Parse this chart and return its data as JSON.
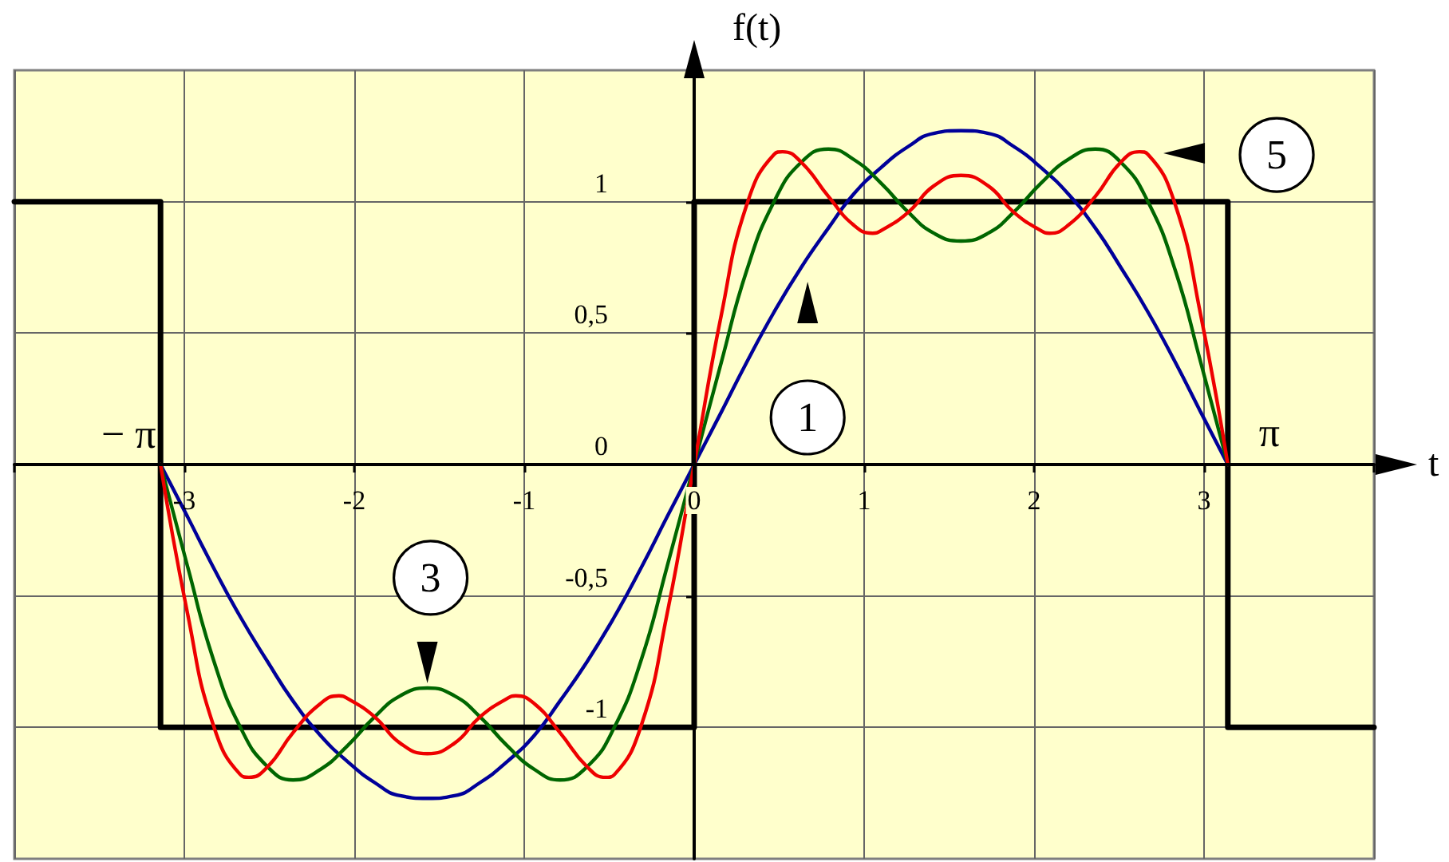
{
  "chart_data": {
    "type": "line",
    "xlabel": "t",
    "ylabel": "f(t)",
    "xlim": [
      -4,
      4
    ],
    "ylim": [
      -1.5,
      1.5
    ],
    "xticks": [
      {
        "value": -4,
        "label": null
      },
      -3,
      -2,
      -1,
      0,
      1,
      2,
      3,
      {
        "value": 4,
        "label": null
      }
    ],
    "yticks": [
      -1,
      {
        "value": -0.5,
        "label": "-0,5"
      },
      0,
      {
        "value": 0.5,
        "label": "0,5"
      },
      1
    ],
    "grid": true,
    "marker": "none",
    "x": [
      -3.14,
      -2.98,
      -2.83,
      -2.67,
      -2.51,
      -2.36,
      -2.2,
      -2.04,
      -1.88,
      -1.73,
      -1.57,
      -1.41,
      -1.26,
      -1.1,
      -0.94,
      -0.79,
      -0.63,
      -0.47,
      -0.31,
      -0.16,
      0,
      0.16,
      0.31,
      0.47,
      0.63,
      0.79,
      0.94,
      1.1,
      1.26,
      1.41,
      1.57,
      1.73,
      1.88,
      2.04,
      2.2,
      2.36,
      2.51,
      2.67,
      2.83,
      2.98,
      3.14
    ],
    "series": [
      {
        "type": "step",
        "color": "#000000",
        "x": [
          -4,
          -3.14,
          0,
          3.14,
          4
        ],
        "values": [
          1,
          -1,
          1,
          -1,
          -1
        ]
      },
      {
        "name": "1",
        "color": "#000099",
        "values": [
          0,
          -0.2,
          -0.39,
          -0.58,
          -0.75,
          -0.9,
          -1.03,
          -1.13,
          -1.21,
          -1.26,
          -1.27,
          -1.26,
          -1.21,
          -1.13,
          -1.03,
          -0.9,
          -0.75,
          -0.58,
          -0.39,
          -0.2,
          0,
          0.2,
          0.39,
          0.58,
          0.75,
          0.9,
          1.03,
          1.13,
          1.21,
          1.26,
          1.27,
          1.26,
          1.21,
          1.13,
          1.03,
          0.9,
          0.75,
          0.58,
          0.39,
          0.2,
          0
        ]
      },
      {
        "name": "3",
        "color": "#006600",
        "values": [
          0,
          -0.39,
          -0.74,
          -1,
          -1.15,
          -1.2,
          -1.16,
          -1.07,
          -0.96,
          -0.88,
          -0.85,
          -0.88,
          -0.96,
          -1.07,
          -1.16,
          -1.2,
          -1.15,
          -1,
          -0.74,
          -0.39,
          0,
          0.39,
          0.74,
          1,
          1.15,
          1.2,
          1.16,
          1.07,
          0.96,
          0.88,
          0.85,
          0.88,
          0.96,
          1.07,
          1.16,
          1.2,
          1.15,
          1,
          0.74,
          0.39,
          0
        ]
      },
      {
        "name": "5",
        "color": "#ee0000",
        "x": [
          -3.14,
          -2.98,
          -2.83,
          -2.67,
          -2.62,
          -2.51,
          -2.36,
          -2.2,
          -2.09,
          -2.04,
          -1.88,
          -1.73,
          -1.57,
          -1.41,
          -1.26,
          -1.1,
          -1.05,
          -0.94,
          -0.79,
          -0.63,
          -0.52,
          -0.47,
          -0.31,
          -0.16,
          0,
          0.16,
          0.31,
          0.47,
          0.52,
          0.63,
          0.79,
          0.94,
          1.05,
          1.1,
          1.26,
          1.41,
          1.57,
          1.73,
          1.88,
          2.04,
          2.09,
          2.2,
          2.36,
          2.51,
          2.62,
          2.67,
          2.83,
          2.98,
          3.14
        ],
        "values": [
          0,
          -0.57,
          -0.99,
          -1.18,
          -1.19,
          -1.15,
          -1.02,
          -0.91,
          -0.88,
          -0.89,
          -0.96,
          -1.06,
          -1.1,
          -1.06,
          -0.96,
          -0.89,
          -0.88,
          -0.91,
          -1.02,
          -1.15,
          -1.19,
          -1.18,
          -0.99,
          -0.57,
          0,
          0.57,
          0.99,
          1.18,
          1.19,
          1.15,
          1.02,
          0.91,
          0.88,
          0.89,
          0.96,
          1.06,
          1.1,
          1.06,
          0.96,
          0.89,
          0.88,
          0.91,
          1.02,
          1.15,
          1.19,
          1.18,
          0.99,
          0.57,
          0
        ]
      }
    ],
    "annotations": [
      {
        "text": "− π",
        "x": -3.14,
        "y": 0
      },
      {
        "text": "π",
        "x": 3.14,
        "y": 0
      }
    ]
  }
}
